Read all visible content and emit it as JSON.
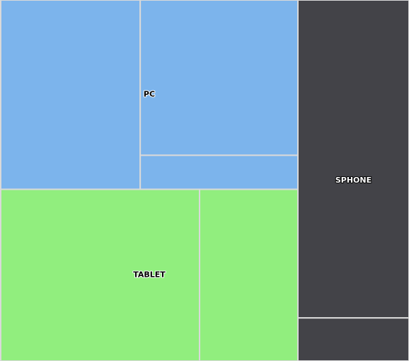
{
  "chart_data": {
    "type": "treemap",
    "title": "",
    "colors": {
      "PC": "#7cb4ec",
      "TABLET": "#91ee7e",
      "SPHONE": "#434348",
      "border": "#d9d9d9"
    },
    "groups": [
      {
        "name": "PC",
        "values": [
          43.8,
          40.6,
          8.9
        ]
      },
      {
        "name": "TABLET",
        "values": [
          56.6,
          28.0
        ]
      },
      {
        "name": "SPHONE",
        "values": [
          71.6,
          9.7
        ]
      }
    ]
  }
}
